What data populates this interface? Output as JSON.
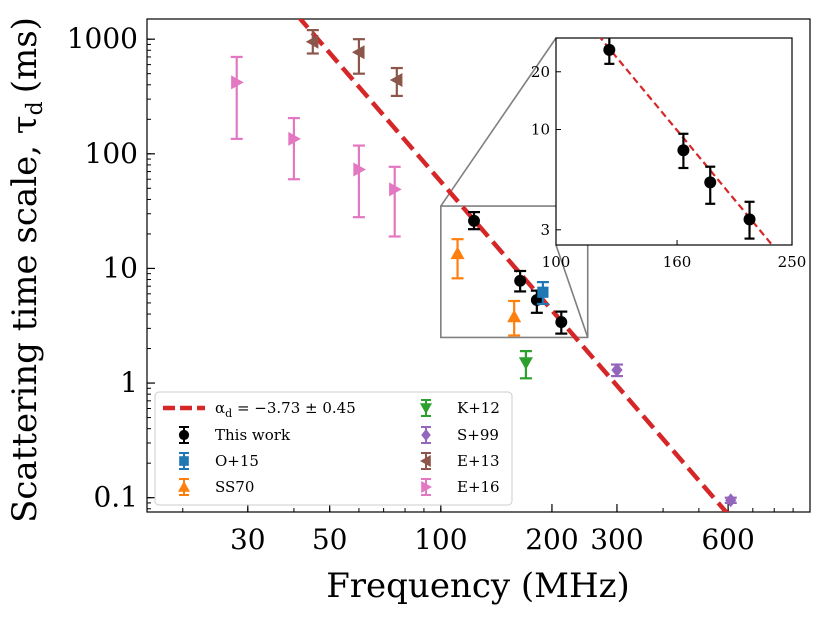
{
  "chart_data": {
    "type": "scatter",
    "xlabel": "Frequency (MHz)",
    "ylabel": "Scattering time scale, τ",
    "ylabel_sub": "d",
    "ylabel_unit": "(ms)",
    "xscale": "log",
    "yscale": "log",
    "xlim": [
      16,
      1000
    ],
    "ylim": [
      0.075,
      1500
    ],
    "xticks": [
      {
        "value": 30,
        "label": "30"
      },
      {
        "value": 50,
        "label": "50"
      },
      {
        "value": 100,
        "label": "100"
      },
      {
        "value": 200,
        "label": "200"
      },
      {
        "value": 300,
        "label": "300"
      },
      {
        "value": 600,
        "label": "600"
      }
    ],
    "yticks": [
      {
        "value": 1000,
        "label": "1000"
      },
      {
        "value": 100,
        "label": "100"
      },
      {
        "value": 10,
        "label": "10"
      },
      {
        "value": 1,
        "label": "1"
      },
      {
        "value": 0.1,
        "label": "0.1"
      }
    ],
    "fit_line": {
      "label_prefix": "α",
      "label_sub": "d",
      "label_value": " = −3.73 ± 0.45",
      "color": "#d62728",
      "slope": -3.73,
      "ref_x": 150,
      "ref_y": 12.6
    },
    "series": [
      {
        "name": "This work",
        "marker": "circle",
        "color": "#000000",
        "points": [
          {
            "x": 123,
            "y": 26,
            "ylo": 22,
            "yhi": 31
          },
          {
            "x": 164,
            "y": 7.8,
            "ylo": 6.3,
            "yhi": 9.5
          },
          {
            "x": 182,
            "y": 5.3,
            "ylo": 4.1,
            "yhi": 6.4
          },
          {
            "x": 212,
            "y": 3.4,
            "ylo": 2.7,
            "yhi": 4.2
          }
        ]
      },
      {
        "name": "O+15",
        "marker": "square",
        "color": "#1f77b4",
        "points": [
          {
            "x": 189,
            "y": 6.2,
            "ylo": 4.9,
            "yhi": 7.6
          }
        ]
      },
      {
        "name": "SS70",
        "marker": "triangle-up",
        "color": "#ff7f0e",
        "points": [
          {
            "x": 111,
            "y": 13.5,
            "ylo": 8.2,
            "yhi": 18
          },
          {
            "x": 158,
            "y": 3.8,
            "ylo": 2.6,
            "yhi": 5.2
          }
        ]
      },
      {
        "name": "K+12",
        "marker": "triangle-down",
        "color": "#2ca02c",
        "points": [
          {
            "x": 170,
            "y": 1.5,
            "ylo": 1.1,
            "yhi": 1.9
          }
        ]
      },
      {
        "name": "S+99",
        "marker": "diamond",
        "color": "#9467bd",
        "points": [
          {
            "x": 300,
            "y": 1.3,
            "ylo": 1.15,
            "yhi": 1.45
          },
          {
            "x": 610,
            "y": 0.095,
            "ylo": 0.09,
            "yhi": 0.1
          }
        ]
      },
      {
        "name": "E+13",
        "marker": "triangle-left",
        "color": "#8c564b",
        "points": [
          {
            "x": 45,
            "y": 950,
            "ylo": 750,
            "yhi": 1200
          },
          {
            "x": 60,
            "y": 770,
            "ylo": 500,
            "yhi": 1000
          },
          {
            "x": 76,
            "y": 440,
            "ylo": 320,
            "yhi": 560
          }
        ]
      },
      {
        "name": "E+16",
        "marker": "triangle-right",
        "color": "#e377c2",
        "points": [
          {
            "x": 28,
            "y": 420,
            "ylo": 135,
            "yhi": 700
          },
          {
            "x": 40,
            "y": 135,
            "ylo": 60,
            "yhi": 205
          },
          {
            "x": 60,
            "y": 73,
            "ylo": 28,
            "yhi": 118
          },
          {
            "x": 75,
            "y": 49,
            "ylo": 19,
            "yhi": 77
          }
        ]
      }
    ],
    "legend": {
      "position": "lower-left",
      "columns": [
        [
          "fit",
          "This work",
          "O+15",
          "SS70"
        ],
        [
          "K+12",
          "S+99",
          "E+13",
          "E+16"
        ]
      ]
    },
    "inset": {
      "xlim": [
        100,
        250
      ],
      "ylim": [
        2.5,
        30
      ],
      "xscale": "log",
      "yscale": "log",
      "xticks": [
        {
          "value": 100,
          "label": "100"
        },
        {
          "value": 160,
          "label": "160"
        },
        {
          "value": 250,
          "label": "250"
        }
      ],
      "yticks": [
        {
          "value": 20,
          "label": "20"
        },
        {
          "value": 10,
          "label": "10"
        },
        {
          "value": 3,
          "label": "3"
        }
      ],
      "source_series": "This work",
      "zoom_region": {
        "xlim": [
          100,
          250
        ],
        "ylim": [
          2.5,
          35
        ]
      }
    }
  }
}
